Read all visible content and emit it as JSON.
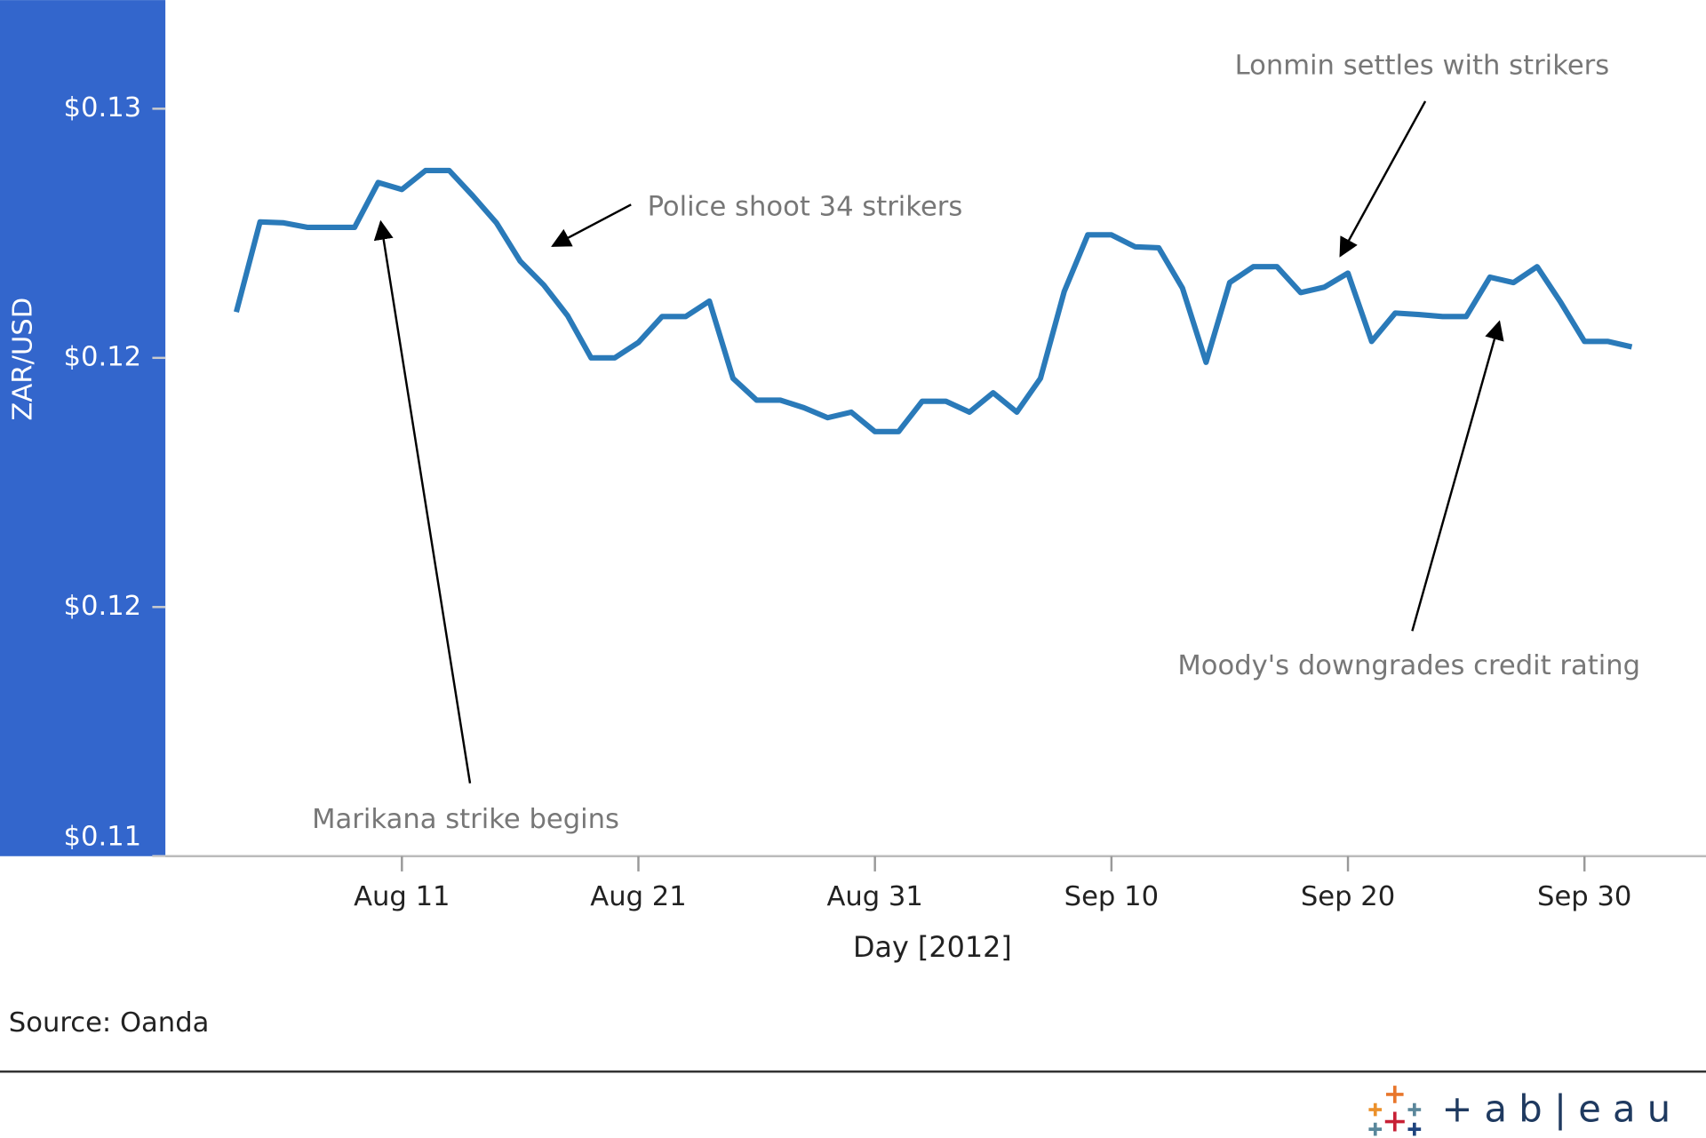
{
  "chart_data": {
    "type": "line",
    "y_label": "ZAR/USD",
    "x_label": "Day [2012]",
    "source": "Source: Oanda",
    "logo": "+ a b | e a u",
    "annotations": [
      "Lonmin settles with strikers",
      "Police shoot 34 strikers",
      "Moody's downgrades credit rating",
      "Marikana strike begins"
    ],
    "color": "#2a7ab9",
    "xlim": [
      "2012-08-01",
      "2012-10-05"
    ],
    "xticks": [
      {
        "value": "2012-08-11",
        "label": "Aug 11"
      },
      {
        "value": "2012-08-21",
        "label": "Aug 21"
      },
      {
        "value": "2012-08-31",
        "label": "Aug 31"
      },
      {
        "value": "2012-09-10",
        "label": "Sep 10"
      },
      {
        "value": "2012-09-20",
        "label": "Sep 20"
      },
      {
        "value": "2012-09-30",
        "label": "Sep 30"
      }
    ],
    "ylim": [
      0.11,
      0.12718
    ],
    "yticks": [
      {
        "value": 0.125,
        "label": "$0.13"
      },
      {
        "value": 0.12,
        "label": "$0.12"
      },
      {
        "value": 0.115,
        "label": "$0.12"
      },
      {
        "value": 0.11,
        "label": "$0.11"
      }
    ],
    "x": [
      "2012-08-04",
      "2012-08-05",
      "2012-08-06",
      "2012-08-07",
      "2012-08-08",
      "2012-08-09",
      "2012-08-10",
      "2012-08-11",
      "2012-08-12",
      "2012-08-13",
      "2012-08-14",
      "2012-08-15",
      "2012-08-16",
      "2012-08-17",
      "2012-08-18",
      "2012-08-19",
      "2012-08-20",
      "2012-08-21",
      "2012-08-22",
      "2012-08-23",
      "2012-08-24",
      "2012-08-25",
      "2012-08-26",
      "2012-08-27",
      "2012-08-28",
      "2012-08-29",
      "2012-08-30",
      "2012-08-31",
      "2012-09-01",
      "2012-09-02",
      "2012-09-03",
      "2012-09-04",
      "2012-09-05",
      "2012-09-06",
      "2012-09-07",
      "2012-09-08",
      "2012-09-09",
      "2012-09-10",
      "2012-09-11",
      "2012-09-12",
      "2012-09-13",
      "2012-09-14",
      "2012-09-15",
      "2012-09-16",
      "2012-09-17",
      "2012-09-18",
      "2012-09-19",
      "2012-09-20",
      "2012-09-21",
      "2012-09-22",
      "2012-09-23",
      "2012-09-24",
      "2012-09-25",
      "2012-09-26",
      "2012-09-27",
      "2012-09-28",
      "2012-09-29",
      "2012-09-30",
      "2012-10-01",
      "2012-10-02"
    ],
    "values": [
      0.12092,
      0.12273,
      0.12271,
      0.12262,
      0.12262,
      0.12262,
      0.12352,
      0.12338,
      0.12376,
      0.12376,
      0.12325,
      0.12271,
      0.12194,
      0.12146,
      0.12085,
      0.12,
      0.12,
      0.12031,
      0.12083,
      0.12083,
      0.12114,
      0.11959,
      0.11915,
      0.11915,
      0.119,
      0.1188,
      0.11891,
      0.11852,
      0.11852,
      0.11913,
      0.11913,
      0.11891,
      0.1193,
      0.11891,
      0.11959,
      0.12133,
      0.12247,
      0.12247,
      0.12223,
      0.12221,
      0.1214,
      0.11991,
      0.12151,
      0.12183,
      0.12183,
      0.12131,
      0.12142,
      0.1217,
      0.12033,
      0.1209,
      0.12087,
      0.12083,
      0.12083,
      0.12162,
      0.12151,
      0.12183,
      0.12111,
      0.12033,
      0.12033,
      0.12022
    ]
  }
}
